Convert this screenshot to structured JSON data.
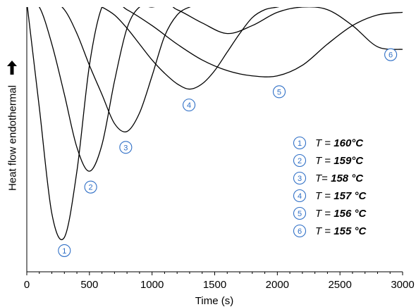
{
  "chart_data": {
    "type": "line",
    "xlabel": "Time (s)",
    "ylabel": "Heat flow endothermal",
    "xlim": [
      0,
      3000
    ],
    "ylim": [
      0,
      1
    ],
    "xticks": [
      "0",
      "500",
      "1000",
      "1500",
      "2000",
      "2500",
      "3000"
    ],
    "grid": false,
    "legend_position": "right",
    "colors": {
      "line": "#000000",
      "marker": "#2f6fc6"
    },
    "legend": [
      {
        "id": "1",
        "prefix": "T = ",
        "value": "160°C"
      },
      {
        "id": "2",
        "prefix": "T = ",
        "value": "159°C"
      },
      {
        "id": "3",
        "prefix": "T= ",
        "value": "158 °C"
      },
      {
        "id": "4",
        "prefix": "T = ",
        "value": "157 °C"
      },
      {
        "id": "5",
        "prefix": "T = ",
        "value": "156 °C"
      },
      {
        "id": "6",
        "prefix": "T = ",
        "value": "155 °C"
      }
    ],
    "series": [
      {
        "id": "1",
        "x": [
          0,
          100,
          200,
          300,
          400,
          500,
          600,
          700
        ],
        "y": [
          1.02,
          0.62,
          0.22,
          0.13,
          0.38,
          0.78,
          1.0,
          1.02
        ]
      },
      {
        "id": "2",
        "x": [
          0,
          100,
          200,
          300,
          400,
          500,
          600,
          700,
          800,
          900,
          1000,
          1100,
          1200
        ],
        "y": [
          1.02,
          1.0,
          0.86,
          0.67,
          0.47,
          0.38,
          0.48,
          0.72,
          0.92,
          1.0,
          1.0,
          1.01,
          1.02
        ]
      },
      {
        "id": "3",
        "x": [
          0,
          200,
          300,
          400,
          500,
          600,
          700,
          800,
          900,
          1000,
          1100,
          1200,
          1300,
          1400,
          1500,
          1550
        ],
        "y": [
          1.02,
          1.02,
          0.99,
          0.9,
          0.78,
          0.67,
          0.56,
          0.53,
          0.6,
          0.74,
          0.89,
          0.97,
          1.0,
          1.01,
          1.01,
          1.02
        ]
      },
      {
        "id": "4",
        "x": [
          0,
          500,
          600,
          700,
          800,
          900,
          1000,
          1100,
          1200,
          1300,
          1400,
          1500,
          1600,
          1700,
          1800,
          1900,
          2000,
          2100,
          2200,
          2250
        ],
        "y": [
          1.02,
          1.02,
          1.0,
          0.97,
          0.92,
          0.86,
          0.8,
          0.75,
          0.71,
          0.69,
          0.71,
          0.76,
          0.83,
          0.9,
          0.96,
          0.99,
          1.0,
          1.01,
          1.01,
          1.02
        ]
      },
      {
        "id": "5",
        "x": [
          0,
          650,
          800,
          1000,
          1200,
          1400,
          1600,
          1800,
          2000,
          2200,
          2400,
          2600,
          2800,
          3000
        ],
        "y": [
          1.02,
          1.02,
          0.99,
          0.93,
          0.86,
          0.8,
          0.76,
          0.74,
          0.74,
          0.78,
          0.86,
          0.93,
          0.97,
          0.98
        ]
      },
      {
        "id": "6",
        "x": [
          0,
          1000,
          1200,
          1400,
          1600,
          1800,
          2000,
          2200,
          2400,
          2600,
          2800,
          3000
        ],
        "y": [
          1.02,
          1.02,
          0.99,
          0.94,
          0.9,
          0.93,
          0.98,
          1.0,
          0.99,
          0.93,
          0.85,
          0.84
        ]
      }
    ],
    "markers": [
      {
        "id": "1",
        "x": 300,
        "y": 0.08
      },
      {
        "id": "2",
        "x": 510,
        "y": 0.32
      },
      {
        "id": "3",
        "x": 790,
        "y": 0.47
      },
      {
        "id": "4",
        "x": 1295,
        "y": 0.63
      },
      {
        "id": "5",
        "x": 2015,
        "y": 0.68
      },
      {
        "id": "6",
        "x": 2905,
        "y": 0.82
      }
    ]
  }
}
